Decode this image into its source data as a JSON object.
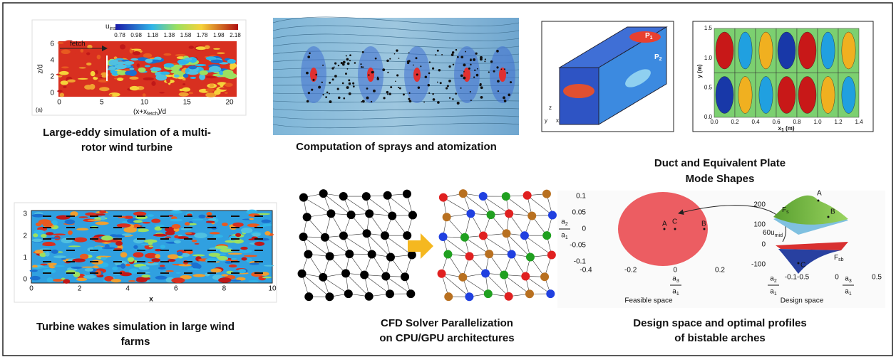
{
  "panels": [
    {
      "caption": [
        "Large-eddy simulation of a multi-",
        "rotor wind turbine"
      ],
      "colorbar_title": "u",
      "colorbar_title_sub": "inst",
      "colorbar_ticks": [
        "0.78",
        "0.98",
        "1.18",
        "1.38",
        "1.58",
        "1.78",
        "1.98",
        "2.18"
      ],
      "annotation": "fetch",
      "y_label": "z/d",
      "y_ticks": [
        0,
        2,
        4,
        6
      ],
      "x_ticks": [
        0,
        5,
        10,
        15,
        20
      ],
      "x_label": "(x+x",
      "x_label_sub": "fetch",
      "x_label_end": ")/d",
      "tag": "(a)"
    },
    {
      "caption": [
        "Computation of  sprays and atomization"
      ]
    },
    {
      "caption": [
        "Duct and Equivalent Plate",
        "Mode Shapes"
      ],
      "duct_labels": [
        [
          "P",
          "1"
        ],
        [
          "P",
          "2"
        ]
      ],
      "axis_letters": [
        "z",
        "y",
        "x"
      ],
      "y_ticks": [
        "0.0",
        "0.5",
        "1.0",
        "1.5"
      ],
      "x_ticks": [
        "0.0",
        "0.2",
        "0.4",
        "0.6",
        "0.8",
        "1.0",
        "1.2",
        "1.4"
      ],
      "y_label": "y (m)",
      "x_label": "x",
      "x_label_sub": "1",
      "x_label_end": " (m)"
    },
    {
      "caption": [
        "Turbine wakes simulation in large wind",
        "farms"
      ],
      "y_ticks": [
        0,
        1,
        2,
        3
      ],
      "x_ticks": [
        0,
        2,
        4,
        6,
        8,
        10
      ],
      "x_label": "x"
    },
    {
      "caption": [
        "CFD Solver Parallelization",
        "on CPU/GPU architectures"
      ]
    },
    {
      "caption": [
        "Design space and optimal profiles",
        "of bistable arches"
      ],
      "left_y_ticks": [
        "0.1",
        "0.05",
        "0",
        "-0.05",
        "-0.1"
      ],
      "left_x_ticks": [
        "-0.4",
        "-0.2",
        "0",
        "0.2"
      ],
      "points": [
        "A",
        "C",
        "B"
      ],
      "left_title": "Feasible space",
      "right_title": "Design space",
      "right_z_ticks": [
        "200",
        "100",
        "0",
        "-100"
      ],
      "right_x_ticks": [
        "-0.1-0.5",
        "0",
        "0.5"
      ],
      "arrow_label": "60u",
      "arrow_label_sub": "mid",
      "surface_labels": [
        [
          "F",
          "s"
        ],
        [
          "F",
          "sb"
        ]
      ]
    }
  ]
}
